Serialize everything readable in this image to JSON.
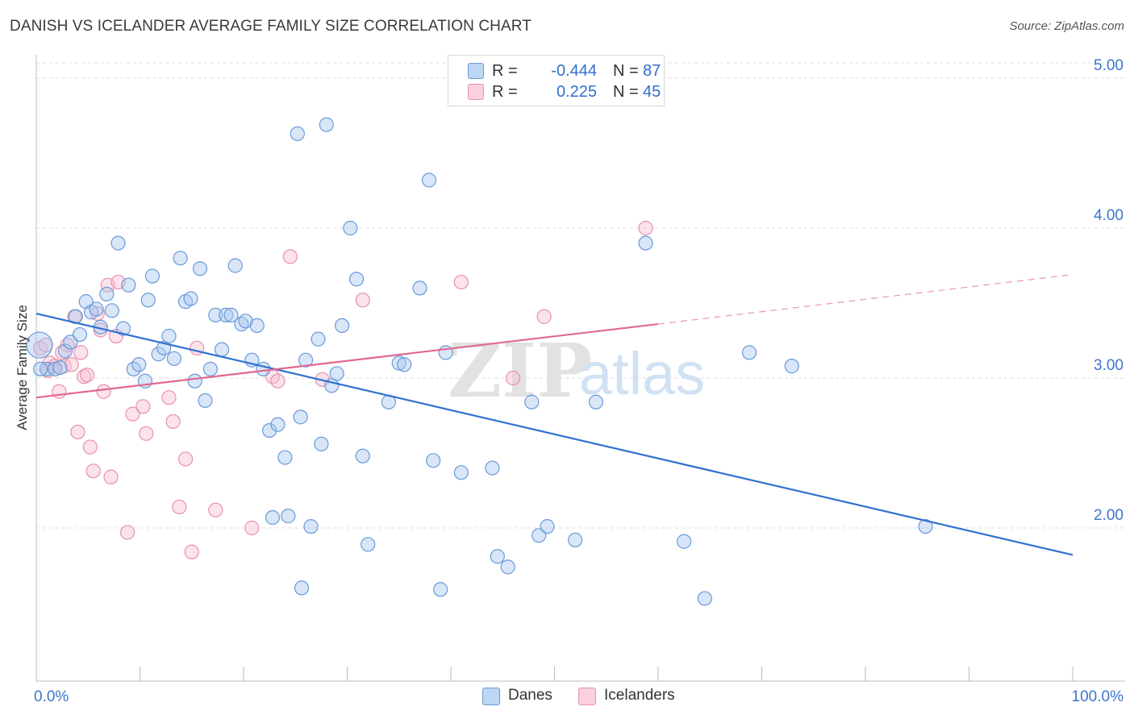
{
  "title": "DANISH VS ICELANDER AVERAGE FAMILY SIZE CORRELATION CHART",
  "source": "Source: ZipAtlas.com",
  "watermark": {
    "zip": "ZIP",
    "atlas": "atlas"
  },
  "legend_top": [
    {
      "r_label": "R =",
      "r_value": "-0.444",
      "n_label": "N =",
      "n_value": "87"
    },
    {
      "r_label": "R =",
      "r_value": "0.225",
      "n_label": "N =",
      "n_value": "45"
    }
  ],
  "bottom_legend": {
    "danes": "Danes",
    "icelanders": "Icelanders"
  },
  "colors": {
    "danes_fill": "#a8c8f0",
    "danes_stroke": "#6a9ad8",
    "danes_line": "#2f72d0",
    "ice_fill": "#f8c0d2",
    "ice_stroke": "#e890ae",
    "ice_line": "#e06890",
    "axis_text": "#3d75cc",
    "grid": "#dcdcdc"
  },
  "chart_data": {
    "type": "scatter",
    "title": "DANISH VS ICELANDER AVERAGE FAMILY SIZE CORRELATION CHART",
    "xlabel": "",
    "ylabel": "Average Family Size",
    "xlim": [
      0,
      100
    ],
    "ylim": [
      1.0,
      5.2
    ],
    "x_tick_labels": [
      "0.0%",
      "100.0%"
    ],
    "y_ticks": [
      2.0,
      3.0,
      4.0,
      5.0
    ],
    "y_tick_labels": [
      "2.00",
      "3.00",
      "4.00",
      "5.00"
    ],
    "grid": true,
    "legend_position": "top-center",
    "series": [
      {
        "name": "Danes",
        "r": -0.444,
        "n": 87,
        "trend": {
          "x": [
            0,
            100
          ],
          "y": [
            3.43,
            1.82
          ]
        },
        "points": [
          [
            0.3,
            3.22
          ],
          [
            1.0,
            3.06
          ],
          [
            1.8,
            3.06
          ],
          [
            2.3,
            3.07
          ],
          [
            2.8,
            3.18
          ],
          [
            3.3,
            3.24
          ],
          [
            3.8,
            3.41
          ],
          [
            4.2,
            3.29
          ],
          [
            4.8,
            3.51
          ],
          [
            5.3,
            3.44
          ],
          [
            5.8,
            3.46
          ],
          [
            6.2,
            3.34
          ],
          [
            6.8,
            3.56
          ],
          [
            7.3,
            3.45
          ],
          [
            7.9,
            3.9
          ],
          [
            8.4,
            3.33
          ],
          [
            8.9,
            3.62
          ],
          [
            9.4,
            3.06
          ],
          [
            9.9,
            3.09
          ],
          [
            10.5,
            2.98
          ],
          [
            10.8,
            3.52
          ],
          [
            11.2,
            3.68
          ],
          [
            11.8,
            3.16
          ],
          [
            12.3,
            3.2
          ],
          [
            12.8,
            3.28
          ],
          [
            13.3,
            3.13
          ],
          [
            13.9,
            3.8
          ],
          [
            14.4,
            3.51
          ],
          [
            14.9,
            3.53
          ],
          [
            15.3,
            2.98
          ],
          [
            15.8,
            3.73
          ],
          [
            16.3,
            2.85
          ],
          [
            16.8,
            3.06
          ],
          [
            17.3,
            3.42
          ],
          [
            17.9,
            3.19
          ],
          [
            18.3,
            3.42
          ],
          [
            18.8,
            3.42
          ],
          [
            19.2,
            3.75
          ],
          [
            19.8,
            3.36
          ],
          [
            20.2,
            3.38
          ],
          [
            20.8,
            3.12
          ],
          [
            21.3,
            3.35
          ],
          [
            21.9,
            3.06
          ],
          [
            22.5,
            2.65
          ],
          [
            22.8,
            2.07
          ],
          [
            23.3,
            2.69
          ],
          [
            24.0,
            2.47
          ],
          [
            24.3,
            2.08
          ],
          [
            25.2,
            4.63
          ],
          [
            25.5,
            2.74
          ],
          [
            25.6,
            1.6
          ],
          [
            26.0,
            3.12
          ],
          [
            26.5,
            2.01
          ],
          [
            27.2,
            3.26
          ],
          [
            27.5,
            2.56
          ],
          [
            28.0,
            4.69
          ],
          [
            28.5,
            2.95
          ],
          [
            29.0,
            3.03
          ],
          [
            29.5,
            3.35
          ],
          [
            30.3,
            4.0
          ],
          [
            30.9,
            3.66
          ],
          [
            31.5,
            2.48
          ],
          [
            32.0,
            1.89
          ],
          [
            34.0,
            2.84
          ],
          [
            35.0,
            3.1
          ],
          [
            35.5,
            3.09
          ],
          [
            37.0,
            3.6
          ],
          [
            37.9,
            4.32
          ],
          [
            38.3,
            2.45
          ],
          [
            39.0,
            1.59
          ],
          [
            39.5,
            3.17
          ],
          [
            41.0,
            2.37
          ],
          [
            44.0,
            2.4
          ],
          [
            44.5,
            1.81
          ],
          [
            45.5,
            1.74
          ],
          [
            47.8,
            2.84
          ],
          [
            48.5,
            1.95
          ],
          [
            49.3,
            2.01
          ],
          [
            52.0,
            1.92
          ],
          [
            54.0,
            2.84
          ],
          [
            58.8,
            3.9
          ],
          [
            62.5,
            1.91
          ],
          [
            64.5,
            1.53
          ],
          [
            68.8,
            3.17
          ],
          [
            72.9,
            3.08
          ],
          [
            85.8,
            2.01
          ],
          [
            0.4,
            3.06
          ]
        ]
      },
      {
        "name": "Icelanders",
        "r": 0.225,
        "n": 45,
        "trend": {
          "x": [
            0,
            60
          ],
          "y": [
            2.87,
            3.36
          ]
        },
        "trend_dashed": {
          "x": [
            60,
            100
          ],
          "y": [
            3.36,
            3.69
          ]
        },
        "points": [
          [
            0.4,
            3.2
          ],
          [
            0.9,
            3.22
          ],
          [
            1.3,
            3.1
          ],
          [
            1.8,
            3.08
          ],
          [
            2.2,
            2.91
          ],
          [
            2.7,
            3.08
          ],
          [
            3.0,
            3.22
          ],
          [
            3.4,
            3.09
          ],
          [
            3.7,
            3.41
          ],
          [
            4.0,
            2.64
          ],
          [
            4.3,
            3.17
          ],
          [
            4.6,
            3.01
          ],
          [
            4.9,
            3.02
          ],
          [
            5.2,
            2.54
          ],
          [
            5.5,
            2.38
          ],
          [
            5.9,
            3.43
          ],
          [
            6.2,
            3.32
          ],
          [
            6.5,
            2.91
          ],
          [
            6.9,
            3.62
          ],
          [
            7.2,
            2.34
          ],
          [
            7.7,
            3.28
          ],
          [
            7.9,
            3.64
          ],
          [
            8.8,
            1.97
          ],
          [
            9.3,
            2.76
          ],
          [
            10.3,
            2.81
          ],
          [
            10.6,
            2.63
          ],
          [
            12.8,
            2.87
          ],
          [
            13.2,
            2.71
          ],
          [
            13.8,
            2.14
          ],
          [
            14.4,
            2.46
          ],
          [
            15.0,
            1.84
          ],
          [
            15.5,
            3.2
          ],
          [
            17.3,
            2.12
          ],
          [
            20.8,
            2.0
          ],
          [
            22.8,
            3.01
          ],
          [
            23.3,
            2.98
          ],
          [
            24.5,
            3.81
          ],
          [
            27.6,
            2.99
          ],
          [
            31.5,
            3.52
          ],
          [
            41.0,
            3.64
          ],
          [
            46.0,
            3.0
          ],
          [
            49.0,
            3.41
          ],
          [
            58.8,
            4.0
          ],
          [
            1.1,
            3.05
          ],
          [
            2.5,
            3.17
          ]
        ]
      }
    ]
  }
}
